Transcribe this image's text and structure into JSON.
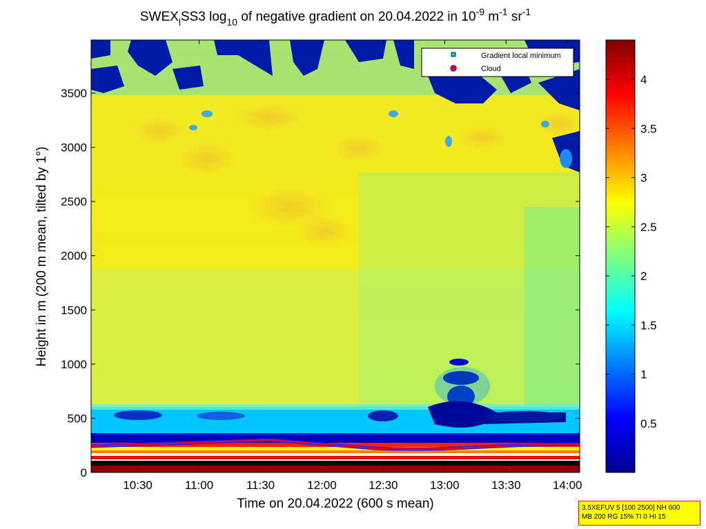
{
  "title": {
    "prefix": "SWEX",
    "sub1": "l",
    "mid": "SS3 log",
    "sub2": "10",
    "mid2": " of negative gradient on 20.04.2022 in 10",
    "sup1": "-9",
    "mid3": " m",
    "sup2": "-1",
    "mid4": " sr",
    "sup3": "-1"
  },
  "chart_data": {
    "type": "heatmap",
    "xlabel": "Time on 20.04.2022 (600 s mean)",
    "ylabel": "Height in m (200 m mean, tilted by 1°)",
    "x_ticks": [
      "10:30",
      "11:00",
      "11:30",
      "12:00",
      "12:30",
      "13:00",
      "13:30",
      "14:00"
    ],
    "x_tick_hours": [
      10.5,
      11.0,
      11.5,
      12.0,
      12.5,
      13.0,
      13.5,
      14.0
    ],
    "xlim_hours": [
      10.12,
      14.1
    ],
    "y_ticks": [
      0,
      500,
      1000,
      1500,
      2000,
      2500,
      3000,
      3500
    ],
    "ylim": [
      0,
      3990
    ],
    "colorbar": {
      "ticks": [
        0.5,
        1,
        1.5,
        2,
        2.5,
        3,
        3.5,
        4
      ],
      "tick_labels": [
        "0.5",
        "1",
        "1.5",
        "2",
        "2.5",
        "3",
        "3.5",
        "4"
      ],
      "range": [
        0,
        4.4
      ],
      "colormap": "jet"
    },
    "legend": {
      "placement": "top-right",
      "entries": [
        {
          "label": "Gradient local minimum",
          "marker": "square",
          "color": "#00cccc"
        },
        {
          "label": "Cloud",
          "marker": "circle",
          "color": "#ff0000"
        }
      ]
    },
    "layers": [
      {
        "height_range": [
          0,
          30
        ],
        "value": 4.3
      },
      {
        "height_range": [
          30,
          250
        ],
        "value": 3.8
      },
      {
        "height_range": [
          250,
          350
        ],
        "value": 0.3
      },
      {
        "height_range": [
          350,
          600
        ],
        "value": 1.3
      },
      {
        "height_range": [
          600,
          3400
        ],
        "value": 2.6
      },
      {
        "height_range": [
          3400,
          3990
        ],
        "value": 1.8
      }
    ]
  },
  "infobox": {
    "line1": "3.5XEFUV 5 [100 2500] NH 600",
    "line2": "MB 200 RG 15% TI 0 HI 15"
  }
}
